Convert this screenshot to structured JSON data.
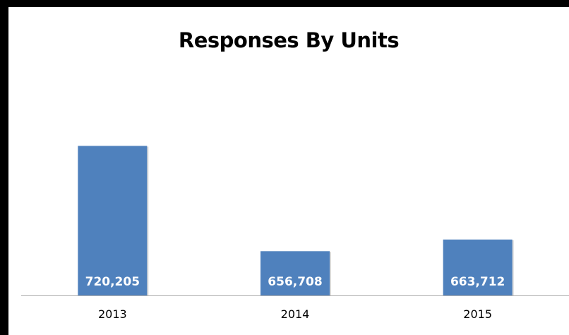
{
  "chart_data": {
    "type": "bar",
    "title": "Responses By Units",
    "xlabel": "",
    "ylabel": "",
    "categories": [
      "2013",
      "2014",
      "2015"
    ],
    "values": [
      720205,
      656708,
      663712
    ],
    "value_labels": [
      "720,205",
      "656,708",
      "663,712"
    ],
    "ylim": [
      630000,
      740000
    ],
    "grid": false,
    "legend": "none",
    "bar_color": "#4f81bd",
    "axis_color": "#b0b0b0"
  }
}
